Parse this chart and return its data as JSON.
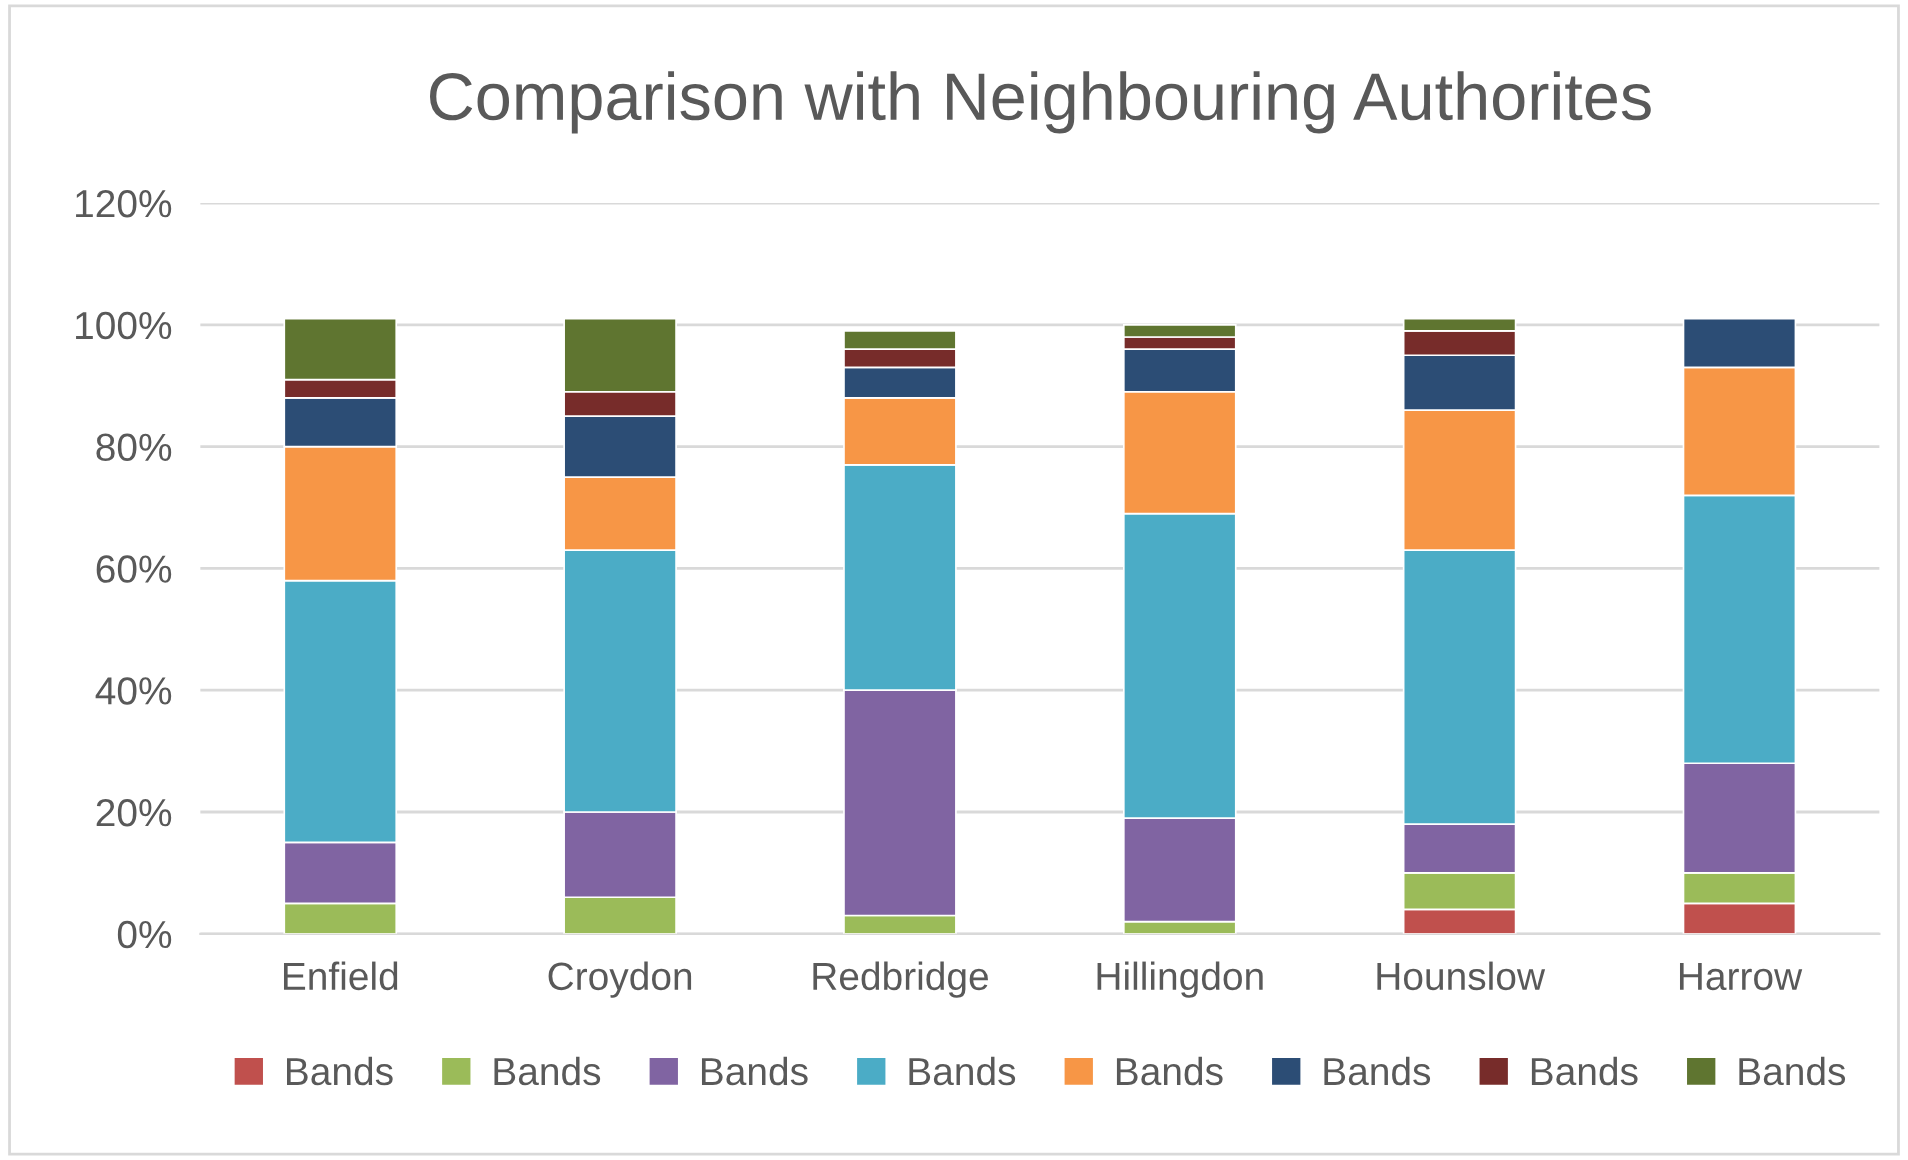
{
  "chart_data": {
    "type": "bar",
    "title": "Comparison with Neighbouring Authorites",
    "stacked": true,
    "categories": [
      "Enfield",
      "Croydon",
      "Redbridge",
      "Hillingdon",
      "Hounslow",
      "Harrow"
    ],
    "series": [
      {
        "name": "Bands",
        "color": "#c0504d",
        "values": [
          null,
          null,
          null,
          null,
          4,
          5
        ]
      },
      {
        "name": "Bands",
        "color": "#9bbb59",
        "values": [
          5,
          6,
          3,
          2,
          6,
          5
        ]
      },
      {
        "name": "Bands",
        "color": "#8064a2",
        "values": [
          10,
          14,
          37,
          17,
          8,
          18
        ]
      },
      {
        "name": "Bands",
        "color": "#4bacc6",
        "values": [
          43,
          43,
          37,
          50,
          45,
          44
        ]
      },
      {
        "name": "Bands",
        "color": "#f79646",
        "values": [
          22,
          12,
          11,
          20,
          23,
          21
        ]
      },
      {
        "name": "Bands",
        "color": "#2c4d75",
        "values": [
          8,
          10,
          5,
          7,
          9,
          8
        ]
      },
      {
        "name": "Bands",
        "color": "#772c2a",
        "values": [
          3,
          4,
          3,
          2,
          4,
          null
        ]
      },
      {
        "name": "Bands",
        "color": "#5f7530",
        "values": [
          10,
          12,
          3,
          2,
          2,
          null
        ]
      }
    ],
    "ylim": [
      0,
      120
    ],
    "yticks": [
      {
        "value": 0,
        "label": "0%"
      },
      {
        "value": 20,
        "label": "20%"
      },
      {
        "value": 40,
        "label": "40%"
      },
      {
        "value": 60,
        "label": "60%"
      },
      {
        "value": 80,
        "label": "80%"
      },
      {
        "value": 100,
        "label": "100%"
      },
      {
        "value": 120,
        "label": "120%"
      }
    ],
    "grid": "y",
    "legend": "bottom"
  }
}
